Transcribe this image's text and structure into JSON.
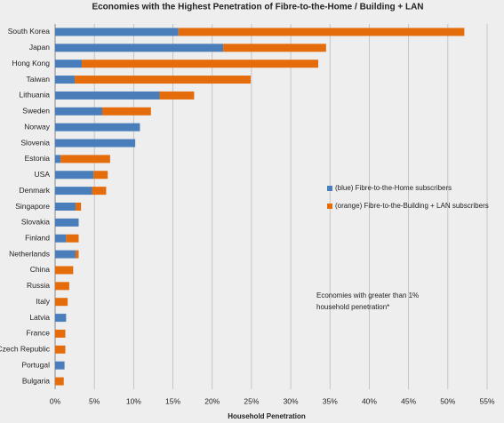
{
  "chart_data": {
    "type": "stacked-bar-horizontal",
    "title": "Economies with the Highest Penetration of  Fibre-to-the-Home / Building  + LAN",
    "x_label": "Household Penetration",
    "categories": [
      "South Korea",
      "Japan",
      "Hong Kong",
      "Taiwan",
      "Lithuania",
      "Sweden",
      "Norway",
      "Slovenia",
      "Estonia",
      "USA",
      "Denmark",
      "Singapore",
      "Slovakia",
      "Finland",
      "Netherlands",
      "China",
      "Russia",
      "Italy",
      "Latvia",
      "France",
      "Czech Republic",
      "Portugal",
      "Bulgaria"
    ],
    "series": [
      {
        "name": "(blue) Fibre-to-the-Home subscribers",
        "color": "#4a7ebb",
        "values": [
          15.7,
          21.4,
          3.4,
          2.5,
          13.3,
          6.0,
          10.8,
          10.2,
          0.7,
          4.9,
          4.7,
          2.6,
          3.0,
          1.4,
          2.6,
          0,
          0,
          0,
          1.4,
          0,
          0,
          1.2,
          0
        ]
      },
      {
        "name": "(orange) Fibre-to-the-Building + LAN subscribers",
        "color": "#e46c0a",
        "values": [
          36.4,
          13.1,
          30.1,
          22.4,
          4.4,
          6.2,
          0,
          0,
          6.3,
          1.8,
          1.8,
          0.7,
          0,
          1.6,
          0.4,
          2.3,
          1.8,
          1.6,
          0,
          1.3,
          1.3,
          0,
          1.1
        ]
      }
    ],
    "xlim": [
      0,
      55
    ],
    "xticks": [
      {
        "value": 0,
        "label": "0%"
      },
      {
        "value": 5,
        "label": "5%"
      },
      {
        "value": 10,
        "label": "10%"
      },
      {
        "value": 15,
        "label": "15%"
      },
      {
        "value": 20,
        "label": "20%"
      },
      {
        "value": 25,
        "label": "25%"
      },
      {
        "value": 30,
        "label": "30%"
      },
      {
        "value": 35,
        "label": "35%"
      },
      {
        "value": 40,
        "label": "40%"
      },
      {
        "value": 45,
        "label": "45%"
      },
      {
        "value": 50,
        "label": "50%"
      },
      {
        "value": 55,
        "label": "55%"
      }
    ],
    "grid": true,
    "annotation": [
      "Economies with greater than 1%",
      "household penetration*"
    ]
  }
}
